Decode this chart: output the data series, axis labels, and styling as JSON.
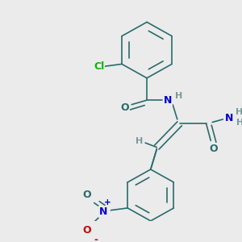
{
  "background_color": "#ebebeb",
  "bond_color": "#2a6b6b",
  "atom_colors": {
    "O": "#2a6b6b",
    "N": "#0000cc",
    "H": "#7a9a9a",
    "Cl": "#00bb00",
    "N_nitro": "#0000cc",
    "O_nitro_neutral": "#2a6b6b",
    "O_nitro_minus": "#cc0000",
    "C": "#2a6b6b"
  },
  "font_size": 8.5,
  "fig_size": [
    3.0,
    3.0
  ],
  "dpi": 100
}
